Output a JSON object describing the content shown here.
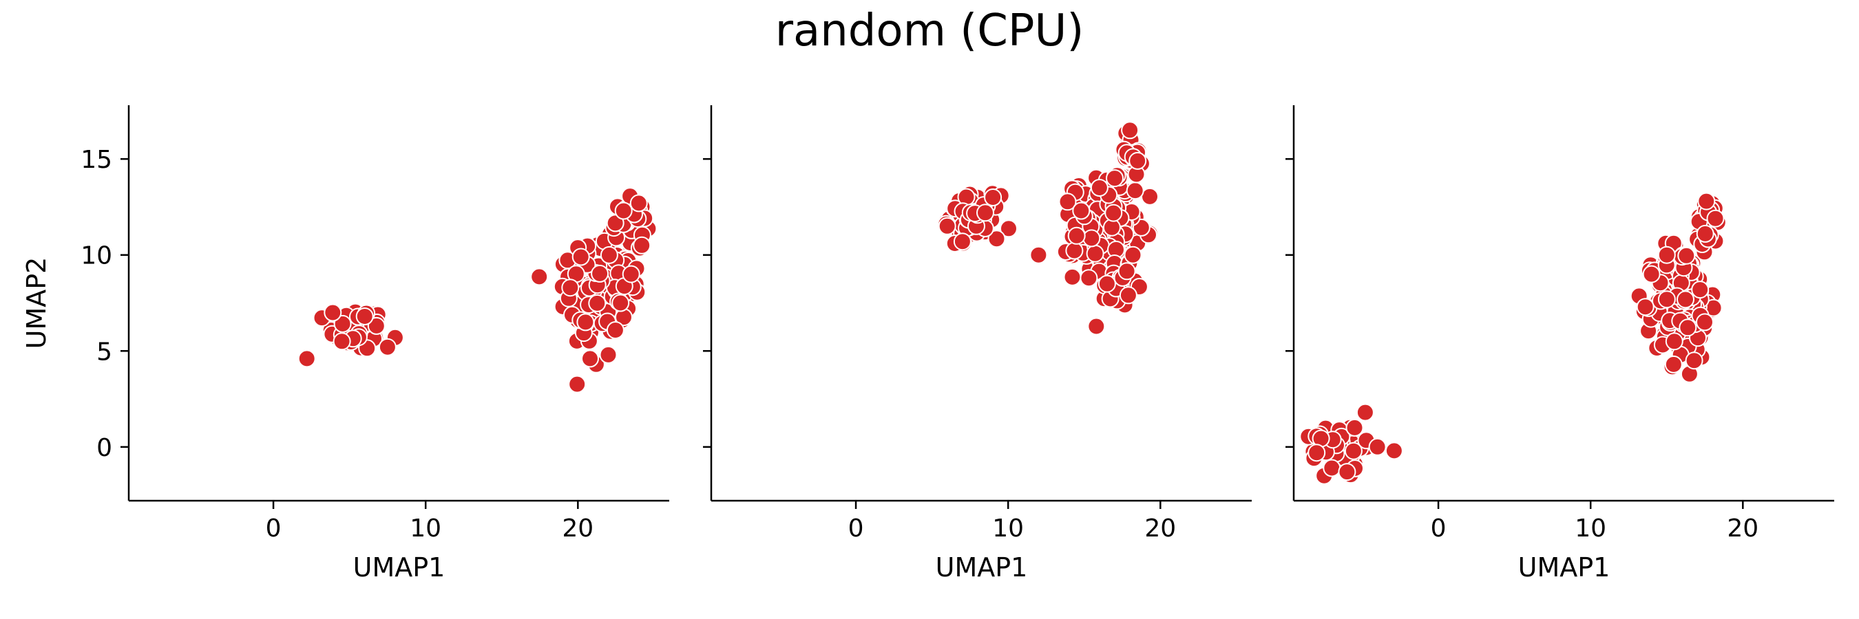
{
  "figure": {
    "title": "random (CPU)"
  },
  "chart_data": [
    {
      "type": "scatter",
      "title": "",
      "xlabel": "UMAP1",
      "ylabel": "UMAP2",
      "xlim": [
        -9.5,
        26
      ],
      "ylim": [
        -2.8,
        17.8
      ],
      "xticks": [
        0,
        10,
        20
      ],
      "yticks": [
        0,
        5,
        10,
        15
      ],
      "grid": false,
      "marker_color": "#d62728",
      "marker_edge_color": "#ffffff",
      "clusters": [
        {
          "cx": 5.5,
          "cy": 6.1,
          "sx": 0.9,
          "sy": 0.55,
          "n": 90
        },
        {
          "cx": 21.5,
          "cy": 8.3,
          "sx": 1.0,
          "sy": 1.2,
          "n": 260
        },
        {
          "cx": 23.5,
          "cy": 11.8,
          "sx": 0.6,
          "sy": 0.5,
          "n": 40
        }
      ],
      "points": [
        [
          2.2,
          4.6
        ],
        [
          7.5,
          5.2
        ],
        [
          3.9,
          7.0
        ],
        [
          21.2,
          4.3
        ],
        [
          20.8,
          4.6
        ],
        [
          22.0,
          4.8
        ],
        [
          24.0,
          12.7
        ],
        [
          23.0,
          12.3
        ],
        [
          19.5,
          8.3
        ],
        [
          24.2,
          10.5
        ],
        [
          20.5,
          6.5
        ],
        [
          22.8,
          7.5
        ],
        [
          6.0,
          6.8
        ],
        [
          4.5,
          5.5
        ],
        [
          20.2,
          9.9
        ],
        [
          23.5,
          9.0
        ]
      ]
    },
    {
      "type": "scatter",
      "title": "",
      "xlabel": "UMAP1",
      "ylabel": "",
      "xlim": [
        -9.5,
        26
      ],
      "ylim": [
        -2.8,
        17.8
      ],
      "xticks": [
        0,
        10,
        20
      ],
      "yticks": [
        0,
        5,
        10,
        15
      ],
      "grid": false,
      "marker_color": "#d62728",
      "marker_edge_color": "#ffffff",
      "clusters": [
        {
          "cx": 7.8,
          "cy": 12.0,
          "sx": 0.8,
          "sy": 0.55,
          "n": 90
        },
        {
          "cx": 16.3,
          "cy": 11.3,
          "sx": 1.0,
          "sy": 1.3,
          "n": 250
        },
        {
          "cx": 18.0,
          "cy": 15.3,
          "sx": 0.4,
          "sy": 0.6,
          "n": 30
        },
        {
          "cx": 17.5,
          "cy": 8.6,
          "sx": 0.5,
          "sy": 0.4,
          "n": 30
        }
      ],
      "points": [
        [
          12.0,
          10.0
        ],
        [
          6.5,
          10.6
        ],
        [
          7.0,
          10.7
        ],
        [
          8.5,
          12.2
        ],
        [
          18.0,
          16.5
        ],
        [
          18.5,
          14.9
        ],
        [
          17.9,
          7.9
        ],
        [
          16.5,
          8.5
        ],
        [
          15.3,
          8.8
        ],
        [
          14.5,
          11.0
        ],
        [
          17.0,
          14.0
        ],
        [
          9.0,
          13.0
        ],
        [
          6.0,
          11.5
        ],
        [
          16.0,
          13.5
        ],
        [
          18.2,
          10.0
        ],
        [
          14.8,
          12.3
        ]
      ]
    },
    {
      "type": "scatter",
      "title": "",
      "xlabel": "UMAP1",
      "ylabel": "",
      "xlim": [
        -9.5,
        26
      ],
      "ylim": [
        -2.8,
        17.8
      ],
      "xticks": [
        0,
        10,
        20
      ],
      "yticks": [
        0,
        5,
        10,
        15
      ],
      "grid": false,
      "marker_color": "#d62728",
      "marker_edge_color": "#ffffff",
      "clusters": [
        {
          "cx": -6.5,
          "cy": 0.0,
          "sx": 0.8,
          "sy": 0.55,
          "n": 90
        },
        {
          "cx": 16.0,
          "cy": 7.5,
          "sx": 0.9,
          "sy": 1.5,
          "n": 230
        },
        {
          "cx": 17.7,
          "cy": 11.5,
          "sx": 0.4,
          "sy": 0.7,
          "n": 30
        }
      ],
      "points": [
        [
          -2.9,
          -0.2
        ],
        [
          -7.5,
          -1.5
        ],
        [
          -7.0,
          -1.1
        ],
        [
          -4.8,
          1.8
        ],
        [
          -5.5,
          1.0
        ],
        [
          -8.0,
          -0.3
        ],
        [
          17.6,
          12.8
        ],
        [
          18.2,
          11.9
        ],
        [
          16.5,
          3.8
        ],
        [
          16.8,
          4.5
        ],
        [
          14.0,
          9.0
        ],
        [
          15.0,
          10.0
        ],
        [
          17.5,
          6.5
        ],
        [
          15.5,
          5.5
        ],
        [
          -4.0,
          0.0
        ],
        [
          -6.0,
          -1.3
        ]
      ]
    }
  ]
}
